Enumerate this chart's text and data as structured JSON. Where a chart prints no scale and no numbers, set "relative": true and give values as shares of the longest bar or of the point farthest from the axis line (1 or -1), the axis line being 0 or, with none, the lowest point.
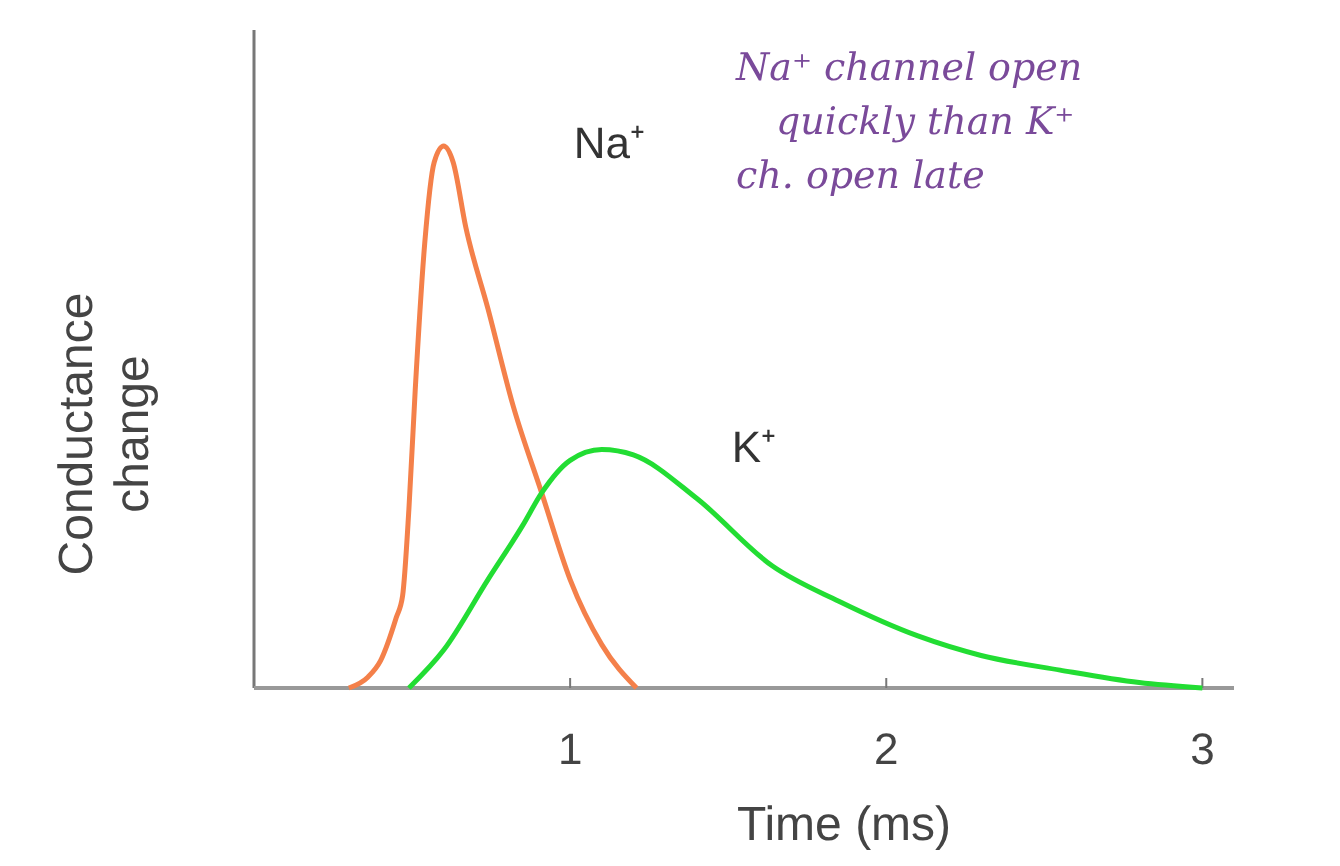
{
  "chart_data": {
    "type": "line",
    "relative": true,
    "xlabel": "Time (ms)",
    "ylabel": "Conductance change",
    "xlim": [
      0,
      3.1
    ],
    "xticks": [
      1,
      2,
      3
    ],
    "tick_labels": "x",
    "grid": false,
    "legend": false,
    "marker": "none",
    "line_style": "solid",
    "annotations": [
      "Na⁺ channel open quickly than K⁺ ch. open late"
    ],
    "series": [
      {
        "name": "Na⁺",
        "color": "#f4804a",
        "x": [
          0.3,
          0.36,
          0.4,
          0.45,
          0.47,
          0.49,
          0.51,
          0.54,
          0.57,
          0.6,
          0.63,
          0.67,
          0.74,
          0.82,
          0.91,
          1.0,
          1.1,
          1.21
        ],
        "values": [
          0,
          0.02,
          0.05,
          0.13,
          0.17,
          0.33,
          0.55,
          0.82,
          0.97,
          1,
          0.97,
          0.85,
          0.7,
          0.52,
          0.36,
          0.2,
          0.08,
          0
        ]
      },
      {
        "name": "K⁺",
        "color": "#22dd33",
        "x": [
          0.49,
          0.6,
          0.74,
          0.85,
          0.91,
          1.0,
          1.1,
          1.2,
          1.4,
          1.64,
          1.85,
          2.1,
          2.3,
          2.55,
          2.8,
          3.0
        ],
        "values": [
          0,
          0.07,
          0.2,
          0.3,
          0.36,
          0.42,
          0.44,
          0.43,
          0.35,
          0.225,
          0.16,
          0.096,
          0.06,
          0.033,
          0.01,
          0
        ]
      }
    ]
  }
}
